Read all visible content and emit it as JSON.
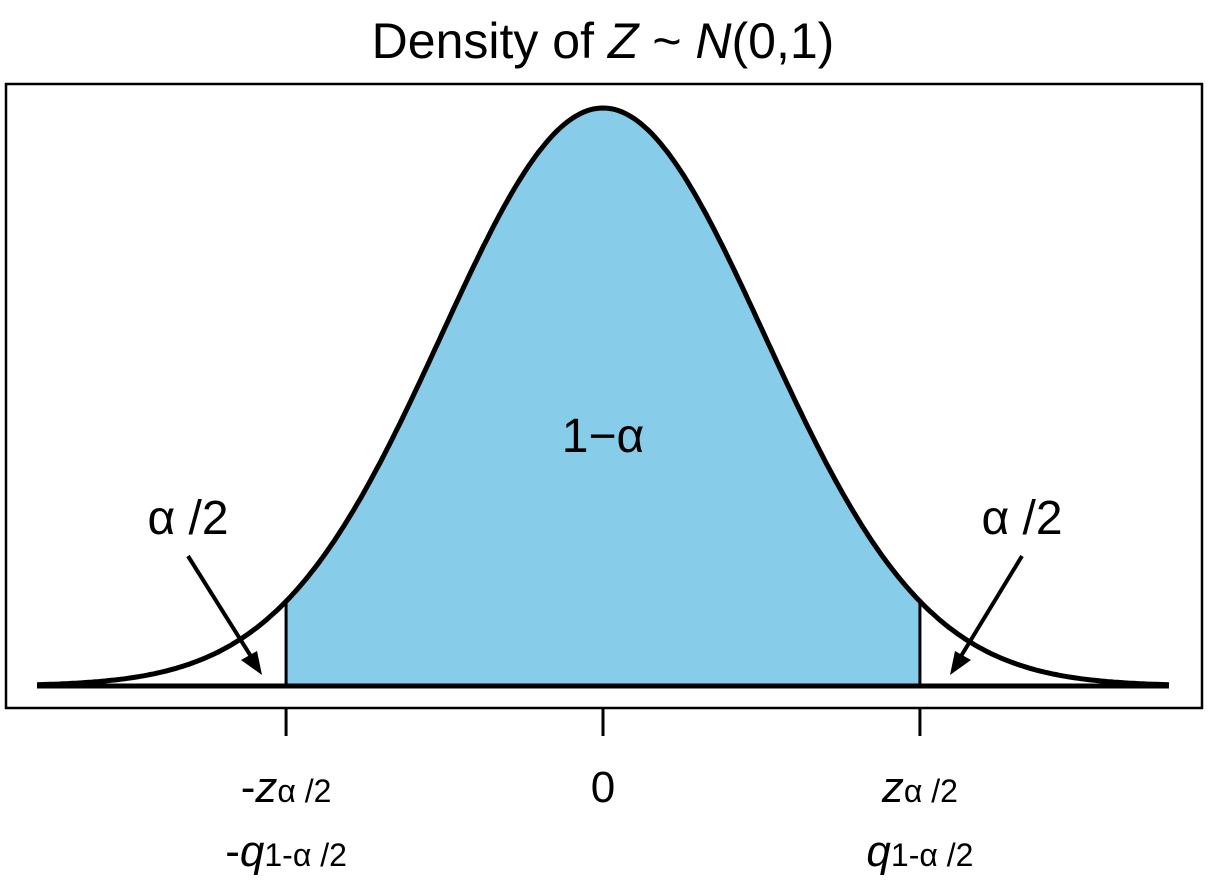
{
  "chart_data": {
    "type": "area",
    "title": {
      "prefix": "Density of ",
      "var": "Z",
      "tilde": " ~ ",
      "dist": "N",
      "params": "(0,1)"
    },
    "x_range": [
      -3.5,
      3.5
    ],
    "density": {
      "mean": 0,
      "sd": 1
    },
    "critical_value": 1.96,
    "center_label": "1−α",
    "tail_labels": {
      "left": "α /2",
      "right": "α /2"
    },
    "ticks": [
      {
        "value": -1.96,
        "line1": {
          "sign": "-",
          "main": "z",
          "sub": "α /2"
        },
        "line2": {
          "sign": "-",
          "main": "q",
          "sub": "1-α /2"
        }
      },
      {
        "value": 0,
        "line1": {
          "sign": "",
          "main": "0",
          "sub": ""
        }
      },
      {
        "value": 1.96,
        "line1": {
          "sign": "",
          "main": "z",
          "sub": "α /2"
        },
        "line2": {
          "sign": "",
          "main": "q",
          "sub": "1-α /2"
        }
      }
    ],
    "colors": {
      "fill": "#87cce8",
      "curve": "#000000",
      "frame": "#000000"
    }
  }
}
